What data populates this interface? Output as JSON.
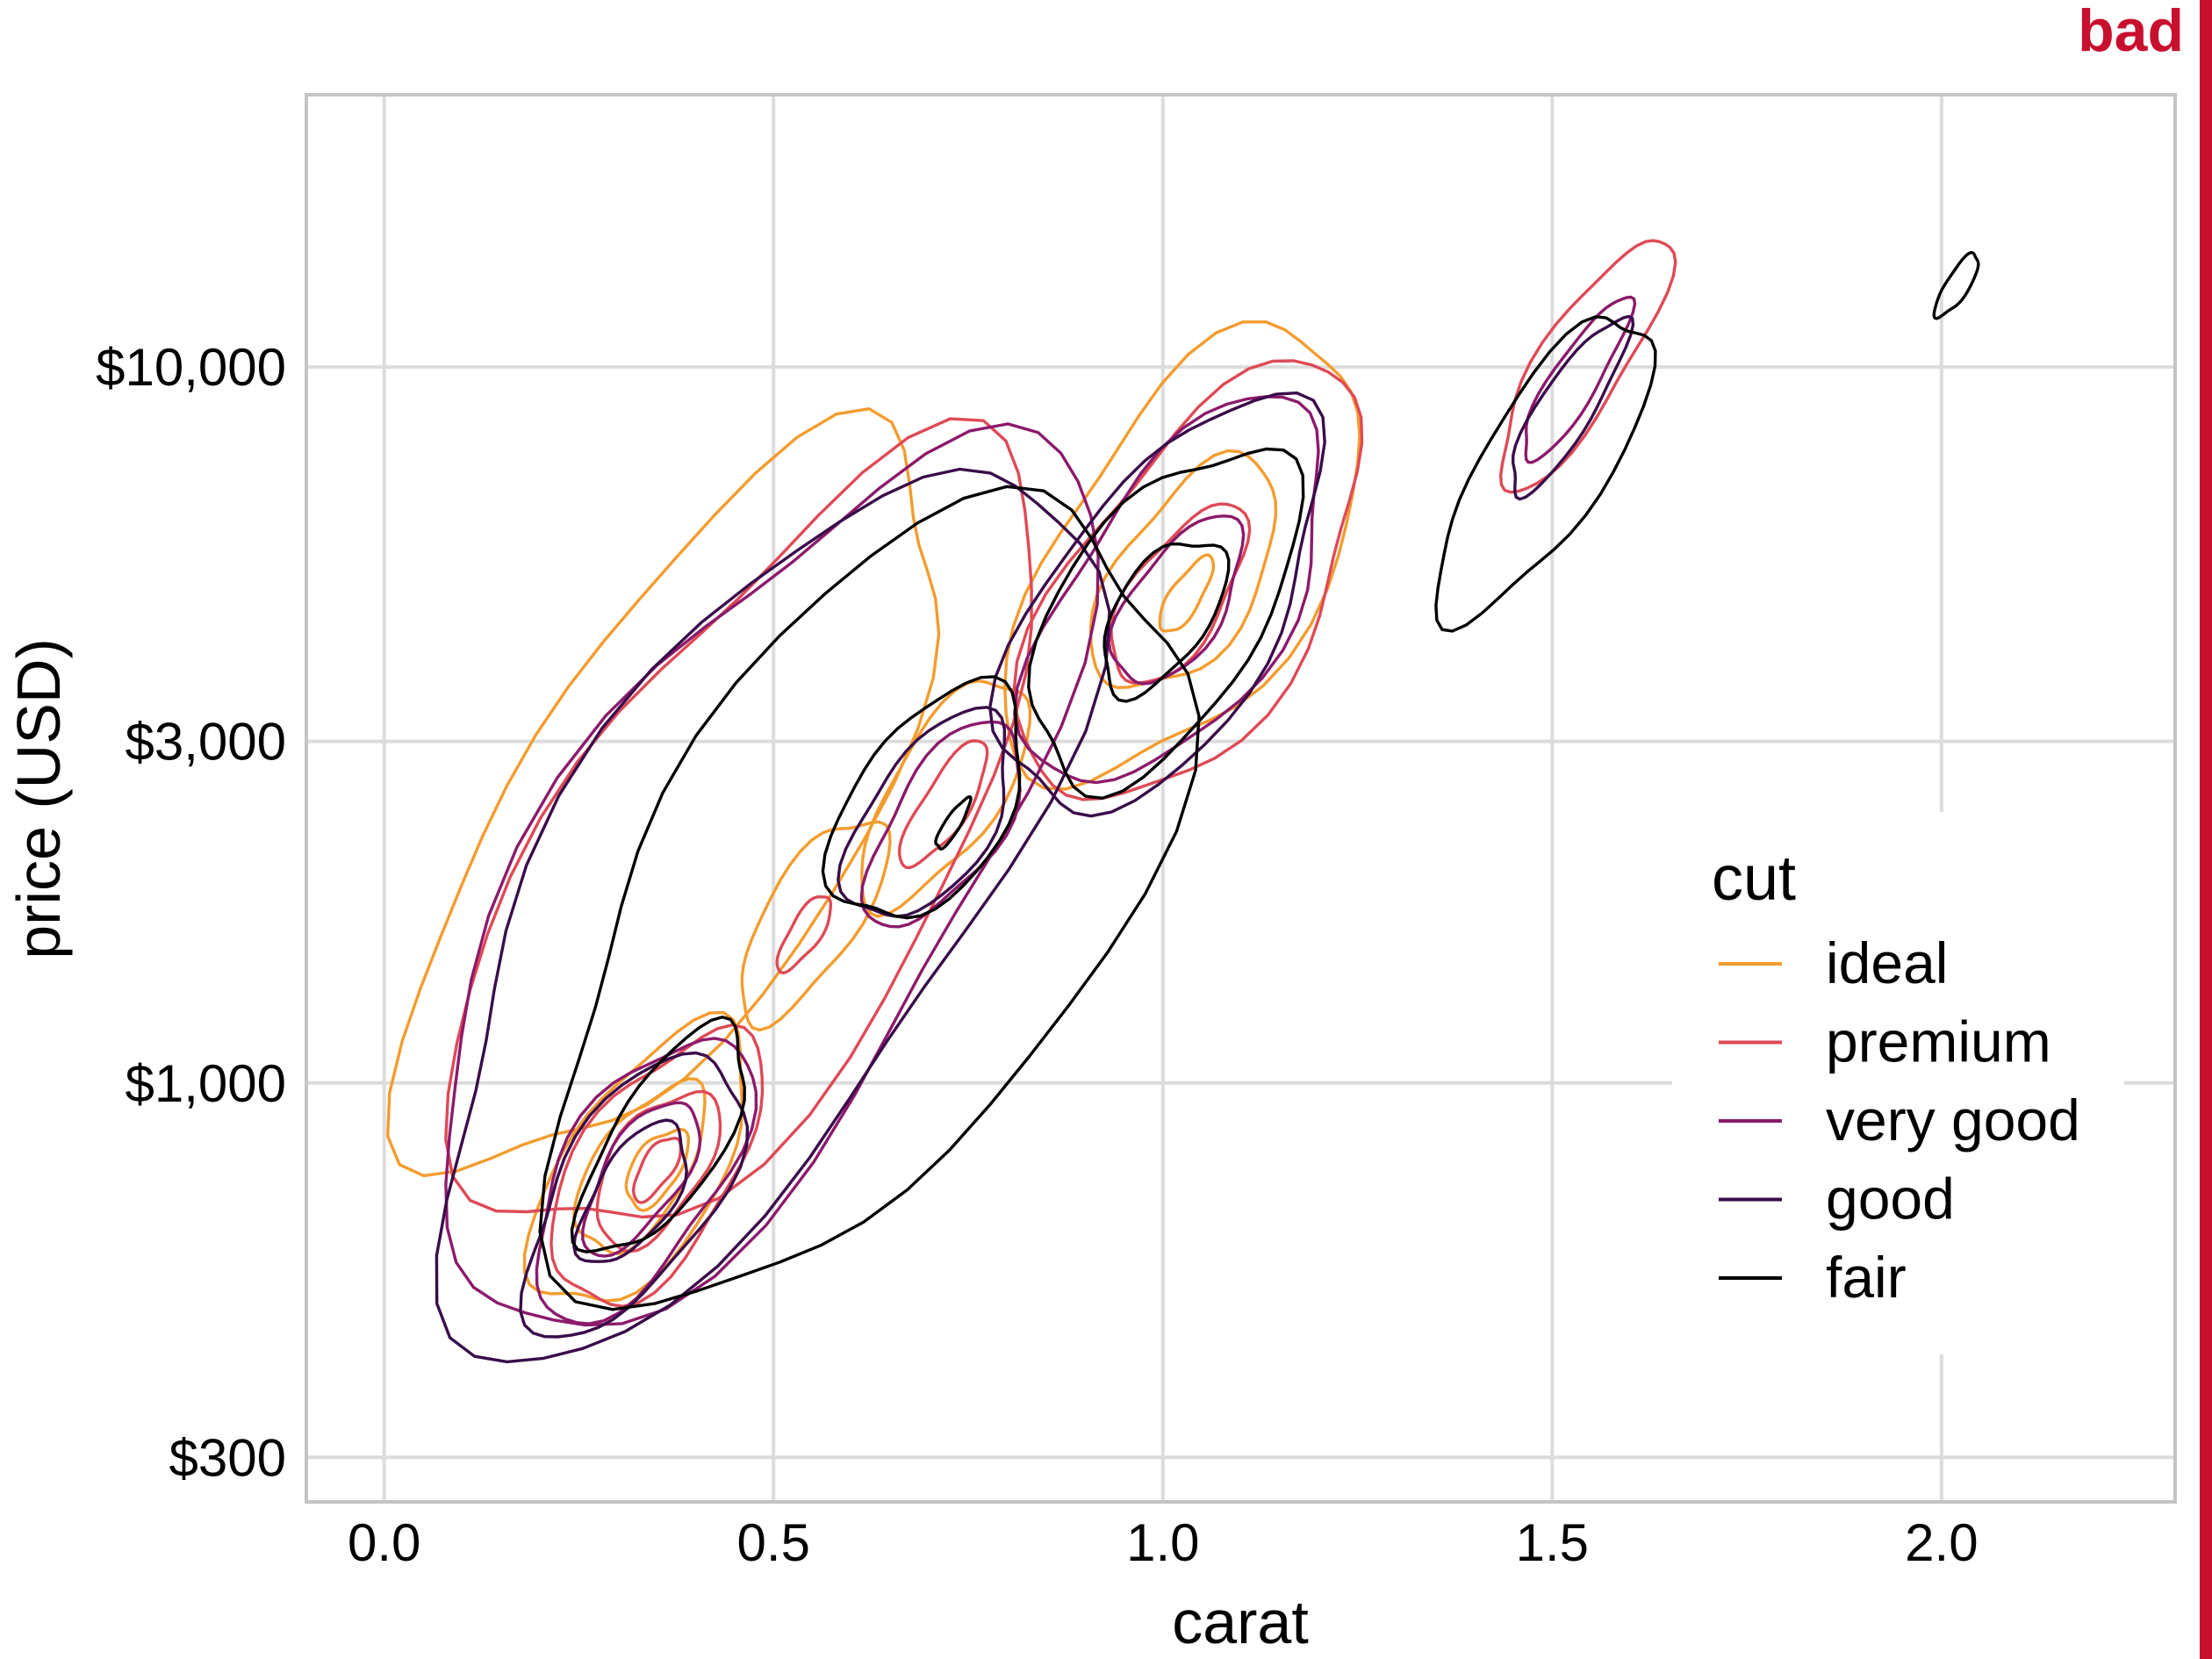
{
  "badge": {
    "text": "bad",
    "color": "#c8102e"
  },
  "chart_data": {
    "type": "density contour",
    "title": "",
    "xlabel": "carat",
    "ylabel": "price (USD)",
    "xlim": [
      -0.1,
      2.3
    ],
    "ylim": [
      260,
      24000
    ],
    "y_scale": "log",
    "x_ticks": [
      0.0,
      0.5,
      1.0,
      1.5,
      2.0
    ],
    "x_tick_labels": [
      "0.0",
      "0.5",
      "1.0",
      "1.5",
      "2.0"
    ],
    "y_ticks": [
      300,
      1000,
      3000,
      10000
    ],
    "y_tick_labels": [
      "$300",
      "$1,000",
      "$3,000",
      "$10,000"
    ],
    "grid": true,
    "legend": {
      "title": "cut",
      "placement": "right, inside plot",
      "entries": [
        "ideal",
        "premium",
        "very good",
        "good",
        "fair"
      ]
    },
    "colors": {
      "ideal": "#f39c2e",
      "premium": "#de4a56",
      "very good": "#8c1a6b",
      "good": "#3a0c4a",
      "fair": "#000000"
    },
    "series": [
      {
        "name": "ideal",
        "contours": [
          {
            "cx": 0.38,
            "cy": 2400,
            "r": [
              0.22,
              0.58
            ]
          },
          {
            "cx": 0.33,
            "cy": 760,
            "r": [
              0.1,
              0.22
            ]
          },
          {
            "cx": 0.33,
            "cy": 760,
            "r": [
              0.06,
              0.13
            ]
          },
          {
            "cx": 0.35,
            "cy": 760,
            "r": [
              0.03,
              0.06
            ]
          },
          {
            "cx": 0.55,
            "cy": 1700,
            "r": [
              0.06,
              0.16
            ]
          },
          {
            "cx": 0.72,
            "cy": 2550,
            "r": [
              0.07,
              0.18
            ]
          },
          {
            "cx": 1.03,
            "cy": 5400,
            "r": [
              0.17,
              0.35
            ]
          },
          {
            "cx": 1.03,
            "cy": 5100,
            "r": [
              0.09,
              0.18
            ]
          },
          {
            "cx": 1.03,
            "cy": 4800,
            "r": [
              0.02,
              0.06
            ]
          }
        ]
      },
      {
        "name": "premium",
        "contours": [
          {
            "cx": 0.47,
            "cy": 2100,
            "r": [
              0.25,
              0.62
            ]
          },
          {
            "cx": 0.35,
            "cy": 760,
            "r": [
              0.1,
              0.21
            ]
          },
          {
            "cx": 0.35,
            "cy": 760,
            "r": [
              0.06,
              0.12
            ]
          },
          {
            "cx": 0.35,
            "cy": 760,
            "r": [
              0.02,
              0.05
            ]
          },
          {
            "cx": 0.54,
            "cy": 1620,
            "r": [
              0.02,
              0.06
            ]
          },
          {
            "cx": 0.72,
            "cy": 2450,
            "r": [
              0.03,
              0.1
            ]
          },
          {
            "cx": 1.04,
            "cy": 4900,
            "r": [
              0.16,
              0.34
            ]
          },
          {
            "cx": 1.02,
            "cy": 4800,
            "r": [
              0.06,
              0.14
            ]
          },
          {
            "cx": 1.54,
            "cy": 10100,
            "r": [
              0.055,
              0.2
            ]
          }
        ]
      },
      {
        "name": "very good",
        "contours": [
          {
            "cx": 0.48,
            "cy": 1900,
            "r": [
              0.27,
              0.7
            ]
          },
          {
            "cx": 0.33,
            "cy": 740,
            "r": [
              0.1,
              0.22
            ]
          },
          {
            "cx": 0.33,
            "cy": 740,
            "r": [
              0.05,
              0.12
            ]
          },
          {
            "cx": 0.72,
            "cy": 2300,
            "r": [
              0.07,
              0.16
            ]
          },
          {
            "cx": 1.02,
            "cy": 4800,
            "r": [
              0.14,
              0.3
            ]
          },
          {
            "cx": 1.02,
            "cy": 4700,
            "r": [
              0.06,
              0.13
            ]
          },
          {
            "cx": 1.53,
            "cy": 9600,
            "r": [
              0.03,
              0.13
            ]
          }
        ]
      },
      {
        "name": "good",
        "contours": [
          {
            "cx": 0.48,
            "cy": 1800,
            "r": [
              0.27,
              0.7
            ]
          },
          {
            "cx": 0.32,
            "cy": 700,
            "r": [
              0.1,
              0.22
            ]
          },
          {
            "cx": 0.32,
            "cy": 700,
            "r": [
              0.05,
              0.11
            ]
          },
          {
            "cx": 0.7,
            "cy": 2350,
            "r": [
              0.08,
              0.16
            ]
          },
          {
            "cx": 1.0,
            "cy": 4600,
            "r": [
              0.15,
              0.32
            ]
          },
          {
            "cx": 1.52,
            "cy": 8800,
            "r": [
              0.035,
              0.14
            ]
          }
        ]
      },
      {
        "name": "fair",
        "contours": [
          {
            "cx": 0.62,
            "cy": 1800,
            "r": [
              0.3,
              0.62
            ]
          },
          {
            "cx": 0.36,
            "cy": 830,
            "r": [
              0.07,
              0.18
            ]
          },
          {
            "cx": 0.7,
            "cy": 2450,
            "r": [
              0.1,
              0.18
            ]
          },
          {
            "cx": 0.73,
            "cy": 2300,
            "r": [
              0.01,
              0.04
            ]
          },
          {
            "cx": 1.0,
            "cy": 4500,
            "r": [
              0.13,
              0.26
            ]
          },
          {
            "cx": 1.0,
            "cy": 4500,
            "r": [
              0.06,
              0.12
            ]
          },
          {
            "cx": 1.49,
            "cy": 7300,
            "r": [
              0.08,
              0.24
            ]
          },
          {
            "cx": 2.02,
            "cy": 13000,
            "r": [
              0.015,
              0.05
            ]
          }
        ]
      }
    ]
  }
}
